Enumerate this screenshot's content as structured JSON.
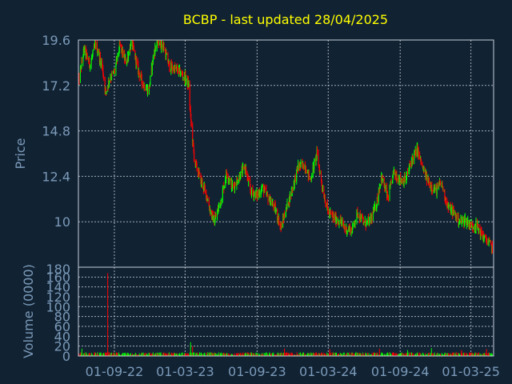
{
  "title": "BCBP - last updated 28/04/2025",
  "colors": {
    "background": "#112233",
    "up": "#00ff00",
    "down": "#ff0000",
    "text": "#7b9ab8",
    "title": "#ffff00",
    "grid": "#c8d0d8"
  },
  "chart_data": [
    {
      "type": "candlestick",
      "title": "BCBP - last updated 28/04/2025",
      "ylabel": "Price",
      "ylim": [
        7.6,
        19.6
      ],
      "y_ticks": [
        "19.6",
        "17.2",
        "14.8",
        "12.4",
        "10"
      ],
      "x_ticks": [
        "01-09-22",
        "01-03-23",
        "01-09-23",
        "01-03-24",
        "01-09-24",
        "01-03-25"
      ],
      "grid": true,
      "price_path": [
        [
          "2022-06-01",
          17.3
        ],
        [
          "2022-06-15",
          19.1
        ],
        [
          "2022-07-01",
          18.3
        ],
        [
          "2022-07-15",
          19.4
        ],
        [
          "2022-08-01",
          18.2
        ],
        [
          "2022-08-10",
          16.8
        ],
        [
          "2022-08-20",
          17.6
        ],
        [
          "2022-09-01",
          17.9
        ],
        [
          "2022-09-15",
          19.3
        ],
        [
          "2022-10-01",
          18.4
        ],
        [
          "2022-10-15",
          19.5
        ],
        [
          "2022-11-01",
          18.0
        ],
        [
          "2022-11-15",
          17.2
        ],
        [
          "2022-11-28",
          16.9
        ],
        [
          "2022-12-10",
          18.8
        ],
        [
          "2022-12-20",
          19.6
        ],
        [
          "2023-01-05",
          19.2
        ],
        [
          "2023-01-20",
          18.2
        ],
        [
          "2023-02-10",
          18.0
        ],
        [
          "2023-03-01",
          17.6
        ],
        [
          "2023-03-10",
          17.2
        ],
        [
          "2023-03-15",
          15.5
        ],
        [
          "2023-03-25",
          13.2
        ],
        [
          "2023-04-10",
          12.2
        ],
        [
          "2023-04-25",
          11.4
        ],
        [
          "2023-05-05",
          10.5
        ],
        [
          "2023-05-15",
          10.0
        ],
        [
          "2023-06-01",
          11.2
        ],
        [
          "2023-06-15",
          12.6
        ],
        [
          "2023-07-01",
          11.8
        ],
        [
          "2023-07-15",
          12.3
        ],
        [
          "2023-08-01",
          12.9
        ],
        [
          "2023-08-15",
          11.6
        ],
        [
          "2023-09-01",
          11.4
        ],
        [
          "2023-09-15",
          11.8
        ],
        [
          "2023-10-01",
          11.2
        ],
        [
          "2023-10-15",
          10.8
        ],
        [
          "2023-11-01",
          9.7
        ],
        [
          "2023-11-15",
          10.7
        ],
        [
          "2023-12-01",
          11.8
        ],
        [
          "2023-12-15",
          12.9
        ],
        [
          "2024-01-01",
          13.0
        ],
        [
          "2024-01-15",
          12.2
        ],
        [
          "2024-02-01",
          13.6
        ],
        [
          "2024-02-15",
          11.8
        ],
        [
          "2024-03-01",
          10.5
        ],
        [
          "2024-03-15",
          10.2
        ],
        [
          "2024-04-01",
          10.0
        ],
        [
          "2024-04-15",
          9.6
        ],
        [
          "2024-05-01",
          9.6
        ],
        [
          "2024-05-15",
          10.5
        ],
        [
          "2024-06-01",
          9.9
        ],
        [
          "2024-06-15",
          10.0
        ],
        [
          "2024-07-01",
          10.8
        ],
        [
          "2024-07-15",
          12.4
        ],
        [
          "2024-08-01",
          11.2
        ],
        [
          "2024-08-15",
          12.6
        ],
        [
          "2024-09-01",
          12.2
        ],
        [
          "2024-09-15",
          12.2
        ],
        [
          "2024-10-01",
          13.3
        ],
        [
          "2024-10-15",
          13.8
        ],
        [
          "2024-11-01",
          12.6
        ],
        [
          "2024-11-15",
          12.0
        ],
        [
          "2024-12-01",
          11.6
        ],
        [
          "2024-12-15",
          12.1
        ],
        [
          "2025-01-01",
          10.8
        ],
        [
          "2025-01-15",
          10.5
        ],
        [
          "2025-02-01",
          10.0
        ],
        [
          "2025-02-15",
          10.1
        ],
        [
          "2025-03-01",
          9.8
        ],
        [
          "2025-03-15",
          9.8
        ],
        [
          "2025-04-01",
          9.2
        ],
        [
          "2025-04-15",
          8.9
        ],
        [
          "2025-04-28",
          8.5
        ]
      ]
    },
    {
      "type": "bar",
      "ylabel": "Volume (0000)",
      "ylim": [
        0,
        180
      ],
      "y_ticks": [
        "180",
        "160",
        "140",
        "120",
        "100",
        "80",
        "60",
        "40",
        "20",
        "0"
      ],
      "x_ticks": [
        "01-09-22",
        "01-03-23",
        "01-09-23",
        "01-03-24",
        "01-09-24",
        "01-03-25"
      ],
      "baseline_volume": 5,
      "spikes": [
        [
          "2022-08-15",
          168
        ],
        [
          "2022-06-10",
          15
        ],
        [
          "2023-01-15",
          25
        ],
        [
          "2023-03-15",
          28
        ],
        [
          "2023-03-20",
          20
        ],
        [
          "2023-05-20",
          18
        ],
        [
          "2023-08-20",
          16
        ],
        [
          "2023-11-10",
          15
        ],
        [
          "2024-02-10",
          18
        ],
        [
          "2024-03-05",
          14
        ],
        [
          "2024-07-10",
          15
        ],
        [
          "2024-09-20",
          12
        ],
        [
          "2024-11-20",
          16
        ],
        [
          "2025-02-05",
          12
        ],
        [
          "2025-04-10",
          14
        ]
      ]
    }
  ]
}
